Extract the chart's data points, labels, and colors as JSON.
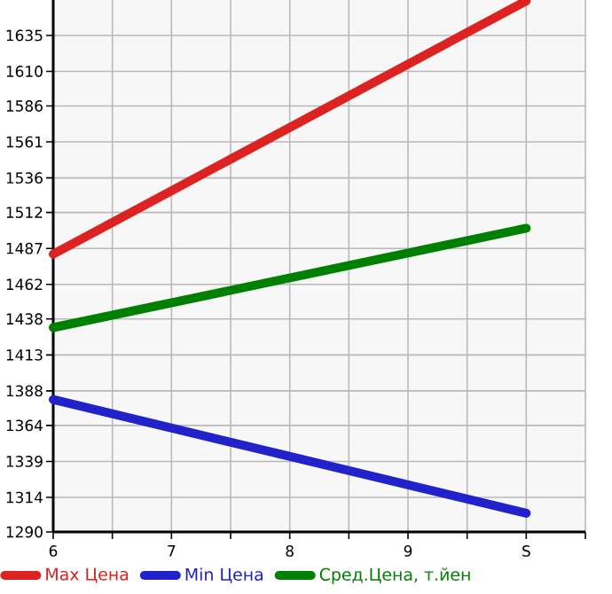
{
  "chart_data": {
    "type": "line",
    "x": [
      6,
      10
    ],
    "series": [
      {
        "name": "Max Цена",
        "color": "#dd2222",
        "values": [
          1483,
          1659
        ]
      },
      {
        "name": "Min Цена",
        "color": "#2222cc",
        "values": [
          1382,
          1303
        ]
      },
      {
        "name": "Сред.Цена, т.йен",
        "color": "#008000",
        "values": [
          1432,
          1501
        ]
      }
    ],
    "xlim": [
      6,
      10.5
    ],
    "xticks": [
      6,
      {
        "value": 6.5,
        "label": null
      },
      7,
      {
        "value": 7.5,
        "label": null
      },
      8,
      {
        "value": 8.5,
        "label": null
      },
      9,
      {
        "value": 9.5,
        "label": null
      },
      {
        "value": 10,
        "label": "S"
      },
      {
        "value": 10.5,
        "label": null
      }
    ],
    "ylim": [
      1290,
      1659.6
    ],
    "yticks": [
      1290,
      1314,
      1339,
      1364,
      1388,
      1413,
      1438,
      1462,
      1487,
      1512,
      1536,
      1561,
      1586,
      1610,
      1635
    ],
    "grid": true,
    "legend": "bottom",
    "marker": "none",
    "line_style": "solid"
  }
}
